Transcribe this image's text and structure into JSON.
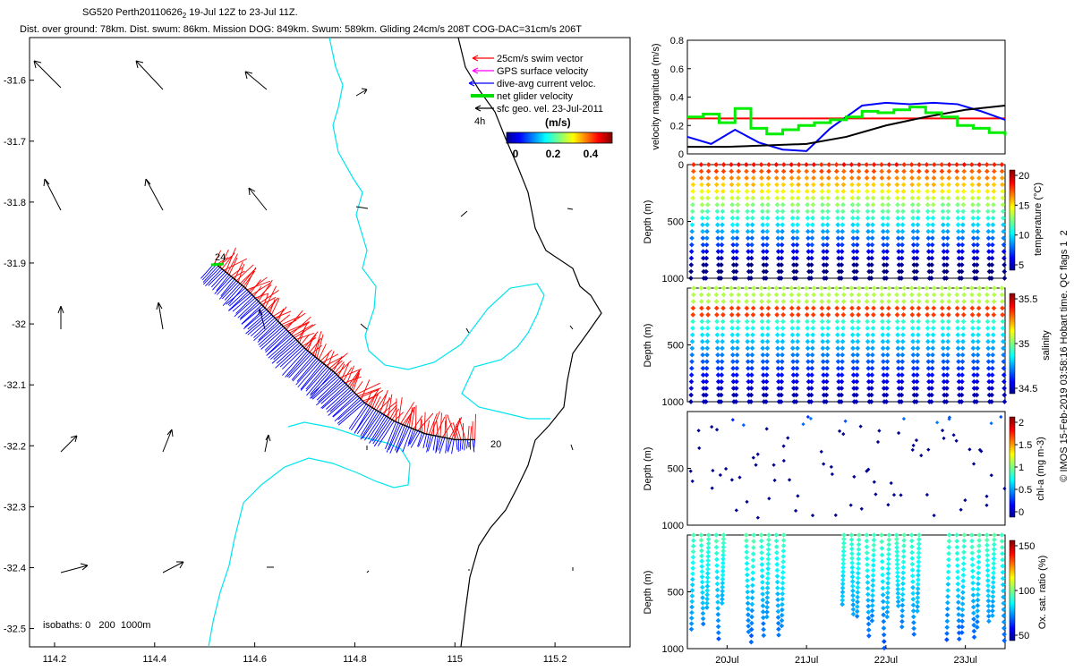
{
  "header": {
    "title": "SG520 Perth20110626",
    "title_sub": "2",
    "title_rest": " 19-Jul 12Z to 23-Jul 11Z.",
    "subtitle": "Dist. over ground: 78km. Dist. swum: 86km. Mission DOG: 849km. Swum: 589km. Gliding 24cm/s 208T COG-DAC=31cm/s 206T"
  },
  "colors": {
    "swim_vector": "#ff0000",
    "gps_velocity": "#ff00ff",
    "dive_avg_current": "#0000ff",
    "net_glider": "#00dd00",
    "sfc_geo": "#000000",
    "isobath": "#00e5ee",
    "coast": "#000000"
  },
  "legend": {
    "items": [
      {
        "label": "25cm/s swim vector"
      },
      {
        "label": "GPS surface velocity"
      },
      {
        "label": "dive-avg current veloc."
      },
      {
        "label": "net glider velocity"
      },
      {
        "label": "sfc geo. vel. 23-Jul-2011"
      }
    ],
    "time_tag": "4h",
    "colorbar_title": "(m/s)",
    "colorbar_ticks": [
      "0",
      "0.2",
      "0.4"
    ]
  },
  "map": {
    "isobath_label": "isobaths: 0   200  1000m",
    "track_start_label": "24",
    "track_end_label": "20"
  },
  "side_label": "© IMOS 15-Feb-2019 03:58:16 Hobart time. QC flags 1  2",
  "chart_data": [
    {
      "type": "scatter",
      "name": "map",
      "xlabel": "",
      "ylabel": "",
      "xlim": [
        114.15,
        115.35
      ],
      "ylim": [
        -32.53,
        -31.53
      ],
      "xticks": [
        "114.2",
        "114.4",
        "114.6",
        "114.8",
        "115",
        "115.2"
      ],
      "yticks": [
        "-31.6",
        "-31.7",
        "-31.8",
        "-31.9",
        "-32",
        "-32.1",
        "-32.2",
        "-32.3",
        "-32.4",
        "-32.5"
      ],
      "track": [
        [
          114.52,
          -31.9
        ],
        [
          114.58,
          -31.94
        ],
        [
          114.64,
          -31.99
        ],
        [
          114.7,
          -32.04
        ],
        [
          114.76,
          -32.08
        ],
        [
          114.82,
          -32.13
        ],
        [
          114.88,
          -32.16
        ],
        [
          114.94,
          -32.18
        ],
        [
          115.0,
          -32.19
        ],
        [
          115.04,
          -32.19
        ]
      ]
    },
    {
      "type": "line",
      "name": "velocity",
      "ylabel": "velocity magnitude (m/s)",
      "xlim": [
        19.5,
        23.5
      ],
      "ylim": [
        0,
        0.8
      ],
      "yticks": [
        "0",
        "0.2",
        "0.4",
        "0.6",
        "0.8"
      ],
      "series": [
        {
          "color": "red",
          "x": [
            19.5,
            23.5
          ],
          "values": [
            0.25,
            0.25
          ]
        },
        {
          "color": "blue",
          "x": [
            19.5,
            19.8,
            20.1,
            20.4,
            20.7,
            21.0,
            21.3,
            21.7,
            22.0,
            22.3,
            22.6,
            22.9,
            23.2,
            23.5
          ],
          "values": [
            0.12,
            0.07,
            0.17,
            0.08,
            0.03,
            0.02,
            0.18,
            0.34,
            0.36,
            0.35,
            0.36,
            0.35,
            0.3,
            0.24
          ]
        },
        {
          "color": "black",
          "x": [
            19.5,
            20.0,
            20.5,
            21.0,
            21.5,
            22.0,
            22.5,
            23.0,
            23.5
          ],
          "values": [
            0.05,
            0.05,
            0.06,
            0.07,
            0.12,
            0.2,
            0.26,
            0.31,
            0.34
          ]
        },
        {
          "color": "green",
          "x": [
            19.5,
            19.7,
            19.9,
            20.1,
            20.3,
            20.5,
            20.7,
            20.9,
            21.1,
            21.3,
            21.5,
            21.7,
            21.9,
            22.1,
            22.3,
            22.5,
            22.7,
            22.9,
            23.1,
            23.3,
            23.5
          ],
          "values": [
            0.26,
            0.28,
            0.22,
            0.32,
            0.18,
            0.14,
            0.17,
            0.2,
            0.22,
            0.24,
            0.26,
            0.3,
            0.29,
            0.31,
            0.33,
            0.29,
            0.26,
            0.2,
            0.18,
            0.15,
            0.13
          ]
        }
      ]
    },
    {
      "type": "scatter",
      "name": "temperature",
      "ylabel": "Depth (m)",
      "cblabel": "temperature (°C)",
      "cbticks": [
        "20",
        "15",
        "10",
        "5"
      ],
      "ylim": [
        0,
        1000
      ],
      "yticks": [
        "0",
        "500",
        "1000"
      ]
    },
    {
      "type": "scatter",
      "name": "salinity",
      "ylabel": "Depth (m)",
      "cblabel": "salinity",
      "cbticks": [
        "35.5",
        "35",
        "34.5"
      ],
      "ylim": [
        0,
        1000
      ],
      "yticks": [
        "500",
        "1000"
      ]
    },
    {
      "type": "scatter",
      "name": "chla",
      "ylabel": "Depth (m)",
      "cblabel": "chl-a (mg m-3)",
      "cbticks": [
        "2",
        "1.5",
        "1",
        "0.5",
        "0"
      ],
      "ylim": [
        0,
        1000
      ],
      "yticks": [
        "500",
        "1000"
      ]
    },
    {
      "type": "scatter",
      "name": "oxygen",
      "ylabel": "Depth (m)",
      "cblabel": "Ox. sat. ratio (%)",
      "cbticks": [
        "150",
        "100",
        "50"
      ],
      "ylim": [
        0,
        1000
      ],
      "yticks": [
        "500",
        "1000"
      ],
      "xticks": [
        "20Jul",
        "21Jul",
        "22Jul",
        "23Jul"
      ]
    }
  ]
}
